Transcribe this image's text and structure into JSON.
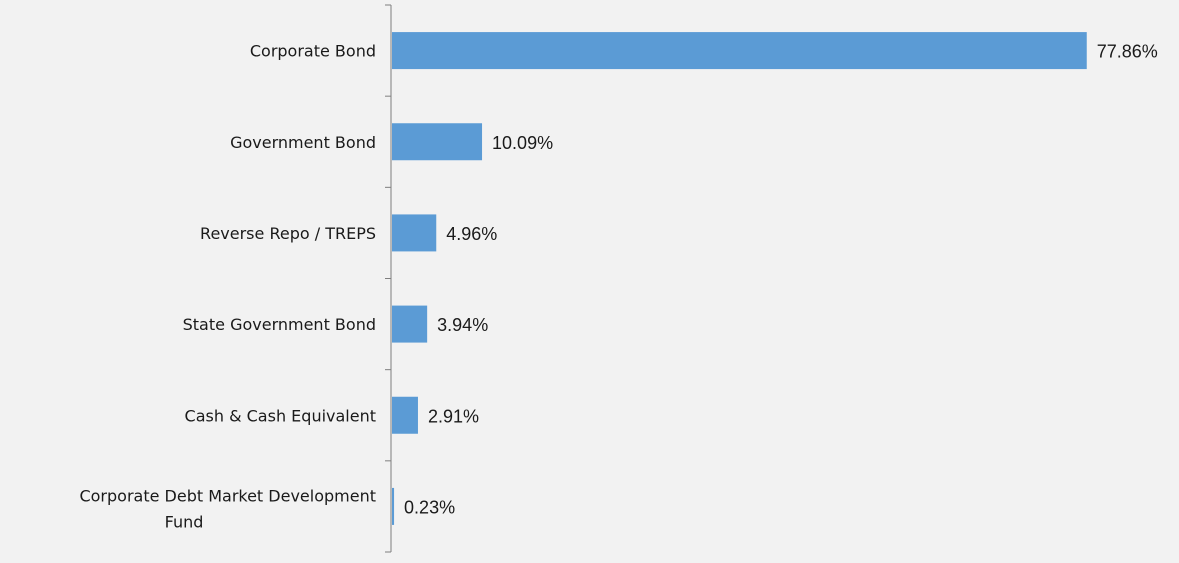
{
  "chart_data": {
    "type": "bar",
    "orientation": "horizontal",
    "categories": [
      "Corporate Bond",
      "Government Bond",
      "Reverse Repo / TREPS",
      "State Government Bond",
      "Cash & Cash Equivalent",
      "Corporate Debt Market Development Fund"
    ],
    "values": [
      77.86,
      10.09,
      4.96,
      3.94,
      2.91,
      0.23
    ],
    "data_labels": [
      "77.86%",
      "10.09%",
      "4.96%",
      "3.94%",
      "2.91%",
      "0.23%"
    ],
    "title": "",
    "xlabel": "",
    "ylabel": "",
    "xlim": [
      0,
      78
    ],
    "grid": false,
    "legend": "none",
    "bar_color": "#5b9bd5",
    "axis_color": "#7f7f7f",
    "background": "#f2f2f2"
  }
}
